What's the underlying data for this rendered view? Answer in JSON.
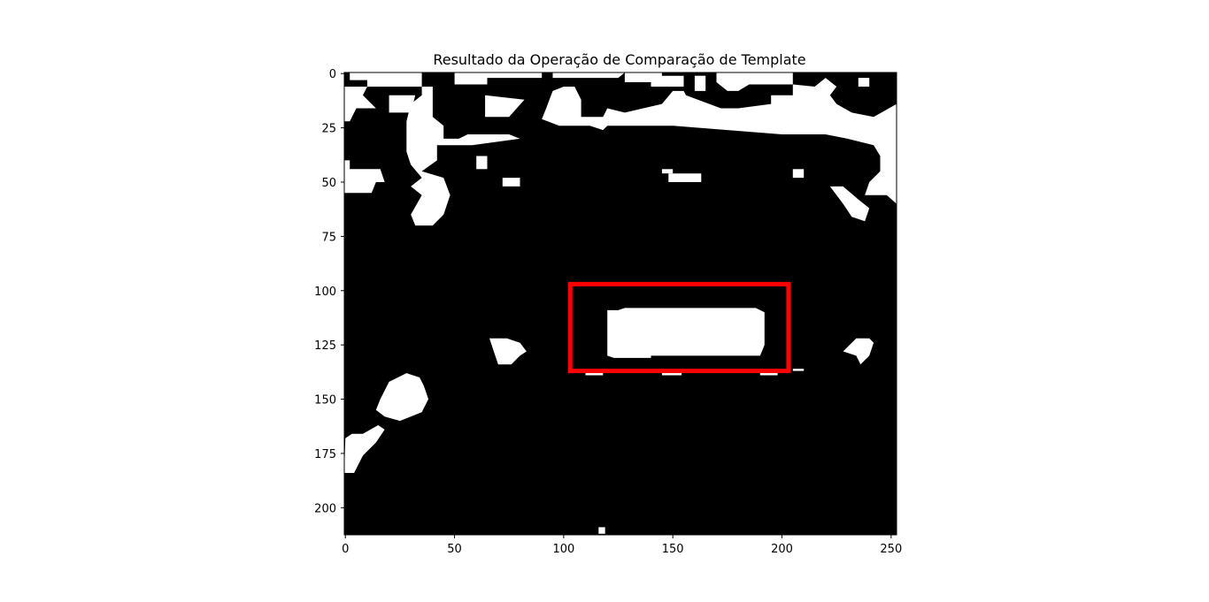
{
  "chart_data": {
    "type": "heatmap",
    "title": "Resultado da Operação de Comparação de Template",
    "xlabel": "",
    "ylabel": "",
    "xlim": [
      -0.5,
      252.5
    ],
    "ylim": [
      212.5,
      -0.5
    ],
    "x_ticks": [
      0,
      50,
      100,
      150,
      200,
      250
    ],
    "y_ticks": [
      0,
      25,
      50,
      75,
      100,
      125,
      150,
      175,
      200
    ],
    "colormap": {
      "0": "#000000",
      "1": "#ffffff"
    },
    "detection_color": "#ff0000",
    "detection_box": {
      "x0": 103,
      "y0": 97,
      "x1": 203,
      "y1": 137
    },
    "white_regions": [
      [
        [
          -0.5,
          -0.5
        ],
        [
          -0.5,
          55
        ],
        [
          12,
          55
        ],
        [
          14,
          50
        ],
        [
          18,
          50
        ],
        [
          16,
          44
        ],
        [
          2,
          44
        ],
        [
          2,
          40
        ],
        [
          -0.5,
          40
        ]
      ],
      [
        [
          2,
          -0.5
        ],
        [
          2,
          3
        ],
        [
          10,
          3
        ],
        [
          10,
          6
        ],
        [
          35,
          6
        ],
        [
          35,
          -0.5
        ]
      ],
      [
        [
          -0.5,
          22
        ],
        [
          2,
          22
        ],
        [
          5,
          16
        ],
        [
          14,
          16
        ],
        [
          8,
          10
        ],
        [
          10,
          6
        ],
        [
          -0.5,
          6
        ]
      ],
      [
        [
          20,
          10
        ],
        [
          20,
          18
        ],
        [
          30,
          18
        ],
        [
          32,
          10
        ]
      ],
      [
        [
          35,
          -0.5
        ],
        [
          35,
          6
        ],
        [
          40,
          6
        ],
        [
          40,
          20
        ],
        [
          45,
          24
        ],
        [
          45,
          30
        ],
        [
          52,
          30
        ],
        [
          56,
          28
        ],
        [
          75,
          28
        ],
        [
          80,
          30
        ],
        [
          58,
          33
        ],
        [
          42,
          33
        ],
        [
          42,
          40
        ],
        [
          35,
          45
        ],
        [
          45,
          48
        ],
        [
          48,
          56
        ],
        [
          45,
          65
        ],
        [
          40,
          70
        ],
        [
          32,
          70
        ],
        [
          30,
          65
        ],
        [
          35,
          56
        ],
        [
          30,
          52
        ],
        [
          35,
          48
        ],
        [
          30,
          42
        ],
        [
          28,
          36
        ],
        [
          28,
          22
        ],
        [
          30,
          14
        ],
        [
          35,
          10
        ]
      ],
      [
        [
          50,
          -0.5
        ],
        [
          50,
          5
        ],
        [
          65,
          5
        ],
        [
          65,
          2
        ],
        [
          90,
          2
        ],
        [
          90,
          -0.5
        ]
      ],
      [
        [
          64,
          10
        ],
        [
          64,
          20
        ],
        [
          75,
          20
        ],
        [
          82,
          12
        ]
      ],
      [
        [
          95,
          -0.5
        ],
        [
          95,
          2
        ],
        [
          125,
          2
        ],
        [
          128,
          -0.5
        ]
      ],
      [
        [
          128,
          -0.5
        ],
        [
          128,
          4
        ],
        [
          145,
          4
        ],
        [
          145,
          -0.5
        ]
      ],
      [
        [
          140,
          1
        ],
        [
          140,
          6
        ],
        [
          155,
          6
        ],
        [
          155,
          1
        ]
      ],
      [
        [
          160,
          1
        ],
        [
          160,
          8
        ],
        [
          165,
          8
        ],
        [
          165,
          1
        ]
      ],
      [
        [
          170,
          -0.5
        ],
        [
          170,
          4
        ],
        [
          175,
          8
        ],
        [
          180,
          8
        ],
        [
          185,
          5
        ],
        [
          205,
          5
        ],
        [
          205,
          -0.5
        ]
      ],
      [
        [
          95,
          8
        ],
        [
          92,
          16
        ],
        [
          90,
          21
        ],
        [
          98,
          24
        ],
        [
          112,
          24
        ],
        [
          118,
          26
        ],
        [
          120,
          24
        ],
        [
          150,
          24
        ],
        [
          175,
          26
        ],
        [
          200,
          28
        ],
        [
          220,
          28
        ],
        [
          230,
          30
        ],
        [
          242,
          33
        ],
        [
          245,
          38
        ],
        [
          245,
          45
        ],
        [
          240,
          50
        ],
        [
          238,
          56
        ],
        [
          248,
          56
        ],
        [
          252.5,
          60
        ],
        [
          252.5,
          14
        ],
        [
          242,
          20
        ],
        [
          232,
          18
        ],
        [
          225,
          14
        ],
        [
          222,
          10
        ],
        [
          225,
          6
        ],
        [
          220,
          2
        ],
        [
          215,
          6
        ],
        [
          205,
          5
        ],
        [
          205,
          10
        ],
        [
          195,
          10
        ],
        [
          195,
          14
        ],
        [
          180,
          16
        ],
        [
          172,
          16
        ],
        [
          156,
          10
        ],
        [
          155,
          8
        ],
        [
          150,
          8
        ],
        [
          145,
          14
        ],
        [
          128,
          18
        ],
        [
          120,
          16
        ],
        [
          118,
          20
        ],
        [
          108,
          20
        ],
        [
          108,
          12
        ],
        [
          105,
          6
        ],
        [
          100,
          6
        ]
      ],
      [
        [
          180,
          16
        ],
        [
          190,
          16
        ],
        [
          190,
          20
        ],
        [
          180,
          20
        ]
      ],
      [
        [
          235,
          2
        ],
        [
          235,
          6
        ],
        [
          240,
          6
        ],
        [
          240,
          2
        ]
      ],
      [
        [
          60,
          38
        ],
        [
          60,
          44
        ],
        [
          65,
          44
        ],
        [
          65,
          38
        ]
      ],
      [
        [
          72,
          48
        ],
        [
          72,
          52
        ],
        [
          80,
          52
        ],
        [
          80,
          48
        ]
      ],
      [
        [
          145,
          44
        ],
        [
          145,
          46
        ],
        [
          150,
          46
        ],
        [
          150,
          44
        ]
      ],
      [
        [
          148,
          46
        ],
        [
          148,
          50
        ],
        [
          163,
          50
        ],
        [
          163,
          46
        ]
      ],
      [
        [
          205,
          44
        ],
        [
          205,
          48
        ],
        [
          210,
          48
        ],
        [
          210,
          44
        ]
      ],
      [
        [
          222,
          52
        ],
        [
          228,
          60
        ],
        [
          232,
          66
        ],
        [
          238,
          68
        ],
        [
          240,
          62
        ],
        [
          235,
          58
        ],
        [
          228,
          52
        ]
      ],
      [
        [
          120,
          109
        ],
        [
          120,
          130
        ],
        [
          123,
          131
        ],
        [
          140,
          131
        ],
        [
          140,
          130
        ],
        [
          190,
          130
        ],
        [
          192,
          125
        ],
        [
          192,
          110
        ],
        [
          188,
          108
        ],
        [
          128,
          108
        ],
        [
          125,
          109
        ]
      ],
      [
        [
          66,
          122
        ],
        [
          68,
          128
        ],
        [
          70,
          134
        ],
        [
          76,
          134
        ],
        [
          80,
          130
        ],
        [
          83,
          128
        ],
        [
          80,
          124
        ],
        [
          74,
          122
        ]
      ],
      [
        [
          28,
          138
        ],
        [
          20,
          142
        ],
        [
          16,
          150
        ],
        [
          14,
          155
        ],
        [
          18,
          158
        ],
        [
          25,
          160
        ],
        [
          35,
          156
        ],
        [
          38,
          150
        ],
        [
          36,
          144
        ],
        [
          34,
          140
        ]
      ],
      [
        [
          0,
          168
        ],
        [
          -0.5,
          184
        ],
        [
          4,
          184
        ],
        [
          8,
          176
        ],
        [
          14,
          170
        ],
        [
          18,
          164
        ],
        [
          15,
          162
        ],
        [
          8,
          166
        ],
        [
          3,
          166
        ]
      ],
      [
        [
          228,
          128
        ],
        [
          234,
          130
        ],
        [
          236,
          134
        ],
        [
          240,
          130
        ],
        [
          242,
          124
        ],
        [
          240,
          122
        ],
        [
          234,
          122
        ],
        [
          232,
          124
        ]
      ],
      [
        [
          110,
          137
        ],
        [
          110,
          139
        ],
        [
          118,
          139
        ],
        [
          118,
          137
        ]
      ],
      [
        [
          145,
          137
        ],
        [
          145,
          139
        ],
        [
          154,
          139
        ],
        [
          154,
          137
        ]
      ],
      [
        [
          190,
          137
        ],
        [
          190,
          139
        ],
        [
          198,
          139
        ],
        [
          198,
          137
        ]
      ],
      [
        [
          205,
          136
        ],
        [
          205,
          137
        ],
        [
          210,
          137
        ],
        [
          210,
          136
        ]
      ],
      [
        [
          116,
          209
        ],
        [
          116,
          212
        ],
        [
          119,
          212
        ],
        [
          119,
          209
        ]
      ]
    ]
  }
}
